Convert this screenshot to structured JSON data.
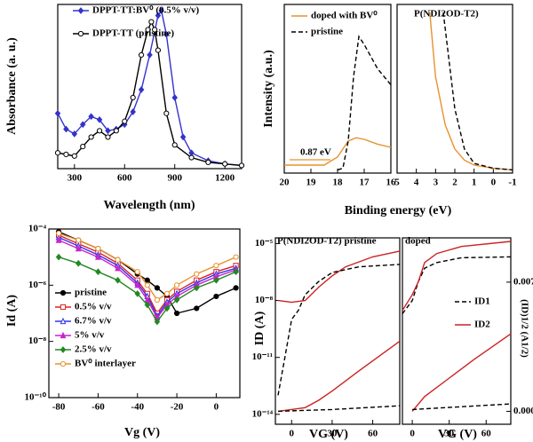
{
  "chart_data": [
    {
      "type": "line",
      "xlabel": "Wavelength (nm)",
      "ylabel": "Absorbance (a. u.)",
      "xlim": [
        200,
        1300
      ],
      "ylim": [
        0,
        1.04
      ],
      "xticks": [
        300,
        600,
        900,
        1200
      ],
      "series": [
        {
          "name": "DPPT-TT:BV⁰ (0.5% v/v)",
          "color": "#3333cc",
          "marker": "diamond",
          "x": [
            200,
            250,
            300,
            350,
            400,
            450,
            500,
            550,
            600,
            650,
            700,
            750,
            800,
            820,
            850,
            900,
            950,
            1000,
            1100,
            1200,
            1300
          ],
          "values": [
            0.35,
            0.25,
            0.22,
            0.28,
            0.33,
            0.31,
            0.24,
            0.25,
            0.28,
            0.36,
            0.5,
            0.72,
            0.97,
            1.0,
            0.85,
            0.45,
            0.2,
            0.1,
            0.05,
            0.03,
            0.02
          ]
        },
        {
          "name": "DPPT-TT (pristine)",
          "color": "#000000",
          "marker": "circle-open",
          "x": [
            200,
            250,
            300,
            350,
            400,
            450,
            500,
            550,
            600,
            650,
            700,
            740,
            760,
            780,
            800,
            850,
            900,
            1000,
            1100,
            1200,
            1300
          ],
          "values": [
            0.1,
            0.09,
            0.08,
            0.14,
            0.2,
            0.24,
            0.2,
            0.24,
            0.3,
            0.45,
            0.72,
            0.88,
            0.93,
            0.88,
            0.75,
            0.35,
            0.15,
            0.07,
            0.04,
            0.03,
            0.02
          ]
        }
      ]
    },
    {
      "type": "line",
      "xlabel": "Binding energy (eV)",
      "ylabel": "Intensity (a.u.)",
      "annotation": "0.87 eV",
      "xlim": [
        20,
        16
      ],
      "ylim": [
        0,
        1.05
      ],
      "xticks": [
        20,
        19,
        18,
        17,
        16
      ],
      "series": [
        {
          "name": "doped with BV⁰",
          "color": "#e8912e",
          "x": [
            20,
            19,
            18.5,
            18,
            17.6,
            17.3,
            17,
            16.5,
            16
          ],
          "values": [
            0.05,
            0.05,
            0.05,
            0.1,
            0.2,
            0.22,
            0.21,
            0.18,
            0.16
          ]
        },
        {
          "name": "pristine",
          "color": "#000000",
          "dash": true,
          "x": [
            18,
            17.8,
            17.6,
            17.4,
            17.2,
            17,
            16.5,
            16
          ],
          "values": [
            0.02,
            0.03,
            0.2,
            0.6,
            0.85,
            0.8,
            0.65,
            0.55
          ]
        }
      ]
    },
    {
      "type": "line",
      "title": "P(NDI2OD-T2)",
      "xlim": [
        5,
        -1
      ],
      "ylim": [
        0,
        1.05
      ],
      "xticks": [
        5,
        4,
        3,
        2,
        1,
        0,
        -1
      ],
      "series": [
        {
          "color": "#e8912e",
          "x": [
            3.3,
            3,
            2.5,
            2,
            1.5,
            1,
            0,
            -1
          ],
          "values": [
            1.0,
            0.6,
            0.3,
            0.15,
            0.08,
            0.05,
            0.03,
            0.02
          ]
        },
        {
          "color": "#000000",
          "dash": true,
          "x": [
            2.6,
            2.3,
            2,
            1.5,
            1,
            0,
            -1
          ],
          "values": [
            1.0,
            0.7,
            0.4,
            0.15,
            0.06,
            0.03,
            0.02
          ]
        }
      ]
    },
    {
      "type": "line",
      "xlabel": "Vg (V)",
      "ylabel": "Id (A)",
      "yscale": "log",
      "xlim": [
        -85,
        12
      ],
      "ylim": [
        1e-10,
        0.0001
      ],
      "xticks": [
        -80,
        -60,
        -40,
        -20,
        0
      ],
      "yticks": [
        {
          "value": 1e-10,
          "label": "10⁻¹⁰"
        },
        {
          "value": 1e-08,
          "label": "10⁻⁸"
        },
        {
          "value": 1e-06,
          "label": "10⁻⁶"
        },
        {
          "value": 0.0001,
          "label": "10⁻⁴"
        }
      ],
      "x": [
        -80,
        -70,
        -60,
        -50,
        -40,
        -35,
        -30,
        -25,
        -20,
        -10,
        0,
        10
      ],
      "series": [
        {
          "name": "pristine",
          "color": "#000000",
          "marker": "circle",
          "values": [
            8e-05,
            4e-05,
            2e-05,
            8e-06,
            2.5e-06,
            1.5e-06,
            8e-07,
            4e-07,
            1e-07,
            1.5e-07,
            4e-07,
            8e-07
          ]
        },
        {
          "name": "0.5% v/v",
          "color": "#dd2222",
          "marker": "square-open",
          "values": [
            6e-05,
            3e-05,
            1.5e-05,
            6e-06,
            1.5e-06,
            5e-07,
            1e-07,
            3e-07,
            6e-07,
            1.5e-06,
            3e-06,
            5e-06
          ]
        },
        {
          "name": "6.7% v/v",
          "color": "#3333ee",
          "marker": "triangle-open",
          "values": [
            5e-05,
            2.5e-05,
            1.2e-05,
            5e-06,
            1.2e-06,
            4e-07,
            8e-08,
            2.5e-07,
            5e-07,
            1.2e-06,
            2.5e-06,
            4e-06
          ]
        },
        {
          "name": "5% v/v",
          "color": "#cc22cc",
          "marker": "triangle",
          "values": [
            4e-05,
            2e-05,
            1e-05,
            4e-06,
            1e-06,
            3e-07,
            7e-08,
            2e-07,
            4e-07,
            1e-06,
            2e-06,
            3.5e-06
          ]
        },
        {
          "name": "2.5% v/v",
          "color": "#228822",
          "marker": "diamond",
          "values": [
            1e-05,
            6e-06,
            3e-06,
            1.5e-06,
            5e-07,
            2e-07,
            5e-08,
            1.5e-07,
            3e-07,
            8e-07,
            1.5e-06,
            3e-06
          ]
        },
        {
          "name": "BV⁰ interlayer",
          "color": "#e8912e",
          "marker": "circle-open",
          "values": [
            7e-05,
            4e-05,
            2e-05,
            8e-06,
            3e-06,
            1e-06,
            3e-07,
            5e-07,
            1e-06,
            2.5e-06,
            5e-06,
            1e-05
          ]
        }
      ]
    },
    {
      "type": "line",
      "title": "P(NDI2OD-T2) pristine",
      "xlabel": "VG (V)",
      "ylabel": "ID (A)",
      "yscale": "log",
      "xlim": [
        -12,
        80
      ],
      "ylim": [
        3e-15,
        2e-05
      ],
      "y2lim": [
        -0.0007,
        0.0094
      ],
      "xticks": [
        0,
        30,
        60
      ],
      "yticks": [
        {
          "value": 1e-14,
          "label": "10⁻¹⁴"
        },
        {
          "value": 1e-11,
          "label": "10⁻¹¹"
        },
        {
          "value": 1e-08,
          "label": "10⁻⁸"
        },
        {
          "value": 1e-05,
          "label": "10⁻⁵"
        }
      ],
      "series": [
        {
          "color": "#cc2222",
          "x": [
            -10,
            0,
            10,
            20,
            30,
            40,
            60,
            80
          ],
          "values": [
            1e-08,
            8e-09,
            1e-08,
            5e-08,
            2e-07,
            6e-07,
            2e-06,
            4e-06
          ]
        },
        {
          "color": "#000000",
          "dash": true,
          "x": [
            -10,
            -5,
            0,
            5,
            10,
            20,
            30,
            50,
            80
          ],
          "values": [
            1e-13,
            1e-11,
            1e-09,
            3e-09,
            2e-08,
            1e-07,
            3e-07,
            6e-07,
            8e-07
          ]
        },
        {
          "color": "#cc2222",
          "axis": "y2",
          "x": [
            -10,
            10,
            20,
            30,
            50,
            80
          ],
          "values": [
            0,
            0.0002,
            0.0006,
            0.0011,
            0.0022,
            0.0038
          ]
        },
        {
          "color": "#000000",
          "dash": true,
          "axis": "y2",
          "x": [
            -10,
            30,
            80
          ],
          "values": [
            0,
            0.0001,
            0.0003
          ]
        }
      ]
    },
    {
      "type": "line",
      "title": "doped",
      "xlabel": "VG (V)",
      "y2label": "(ID)1/2 (A1/2)",
      "yscale": "log",
      "xlim": [
        -8,
        80
      ],
      "ylim": [
        3e-15,
        2e-05
      ],
      "y2lim": [
        -0.0007,
        0.0094
      ],
      "xticks": [
        0,
        30,
        60
      ],
      "y2ticks": [
        {
          "value": 0,
          "label": "0.000"
        },
        0.007
      ],
      "series": [
        {
          "name": "ID1",
          "color": "#000000",
          "dash": true,
          "x": [
            -8,
            0,
            5,
            10,
            20,
            40,
            80
          ],
          "values": [
            2e-09,
            1e-08,
            1e-07,
            5e-07,
            1e-06,
            1.8e-06,
            2e-06
          ]
        },
        {
          "name": "ID2",
          "color": "#cc2222",
          "x": [
            -8,
            0,
            5,
            10,
            20,
            40,
            80
          ],
          "values": [
            3e-09,
            2e-08,
            1e-07,
            1e-06,
            3e-06,
            7e-06,
            1.3e-05
          ]
        },
        {
          "color": "#cc2222",
          "axis": "y2",
          "x": [
            0,
            10,
            30,
            50,
            80
          ],
          "values": [
            0,
            0.0008,
            0.0018,
            0.0028,
            0.0042
          ]
        },
        {
          "color": "#000000",
          "dash": true,
          "axis": "y2",
          "x": [
            0,
            80
          ],
          "values": [
            0.0001,
            0.0004
          ]
        }
      ]
    }
  ]
}
